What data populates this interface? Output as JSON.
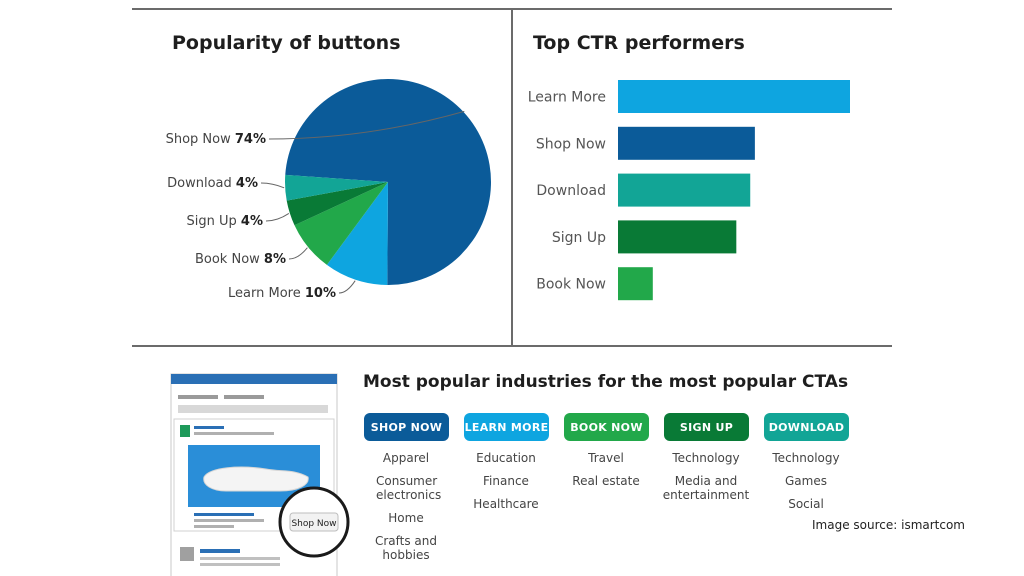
{
  "chart_data": [
    {
      "type": "pie",
      "title": "Popularity of buttons",
      "slices": [
        {
          "label": "Shop Now",
          "value": 74,
          "display": "74%",
          "color": "#0b5b99"
        },
        {
          "label": "Learn More",
          "value": 10,
          "display": "10%",
          "color": "#0ea5e0"
        },
        {
          "label": "Book Now",
          "value": 8,
          "display": "8%",
          "color": "#22a84a"
        },
        {
          "label": "Sign Up",
          "value": 4,
          "display": "4%",
          "color": "#097a36"
        },
        {
          "label": "Download",
          "value": 4,
          "display": "4%",
          "color": "#12a596"
        }
      ]
    },
    {
      "type": "bar",
      "orientation": "horizontal",
      "title": "Top CTR performers",
      "categories": [
        "Learn More",
        "Shop Now",
        "Download",
        "Sign Up",
        "Book Now"
      ],
      "values": [
        100,
        59,
        57,
        51,
        15
      ],
      "colors": [
        "#0ea5e0",
        "#0b5b99",
        "#12a596",
        "#097a36",
        "#22a84a"
      ]
    }
  ],
  "industries": {
    "title": "Most popular industries for the most popular CTAs",
    "columns": [
      {
        "cta": "SHOP NOW",
        "color": "#0b5b99",
        "items": [
          "Apparel",
          "Consumer electronics",
          "Home",
          "Crafts and hobbies"
        ]
      },
      {
        "cta": "LEARN MORE",
        "color": "#0ea5e0",
        "items": [
          "Education",
          "Finance",
          "Healthcare"
        ]
      },
      {
        "cta": "BOOK NOW",
        "color": "#22a84a",
        "items": [
          "Travel",
          "Real estate"
        ]
      },
      {
        "cta": "SIGN UP",
        "color": "#097a36",
        "items": [
          "Technology",
          "Media and entertainment"
        ]
      },
      {
        "cta": "DOWNLOAD",
        "color": "#12a596",
        "items": [
          "Technology",
          "Games",
          "Social"
        ]
      }
    ]
  },
  "mockup": {
    "button_label": "Shop Now",
    "accent_color": "#2a8ed8"
  },
  "source": "Image source: ismartcom"
}
